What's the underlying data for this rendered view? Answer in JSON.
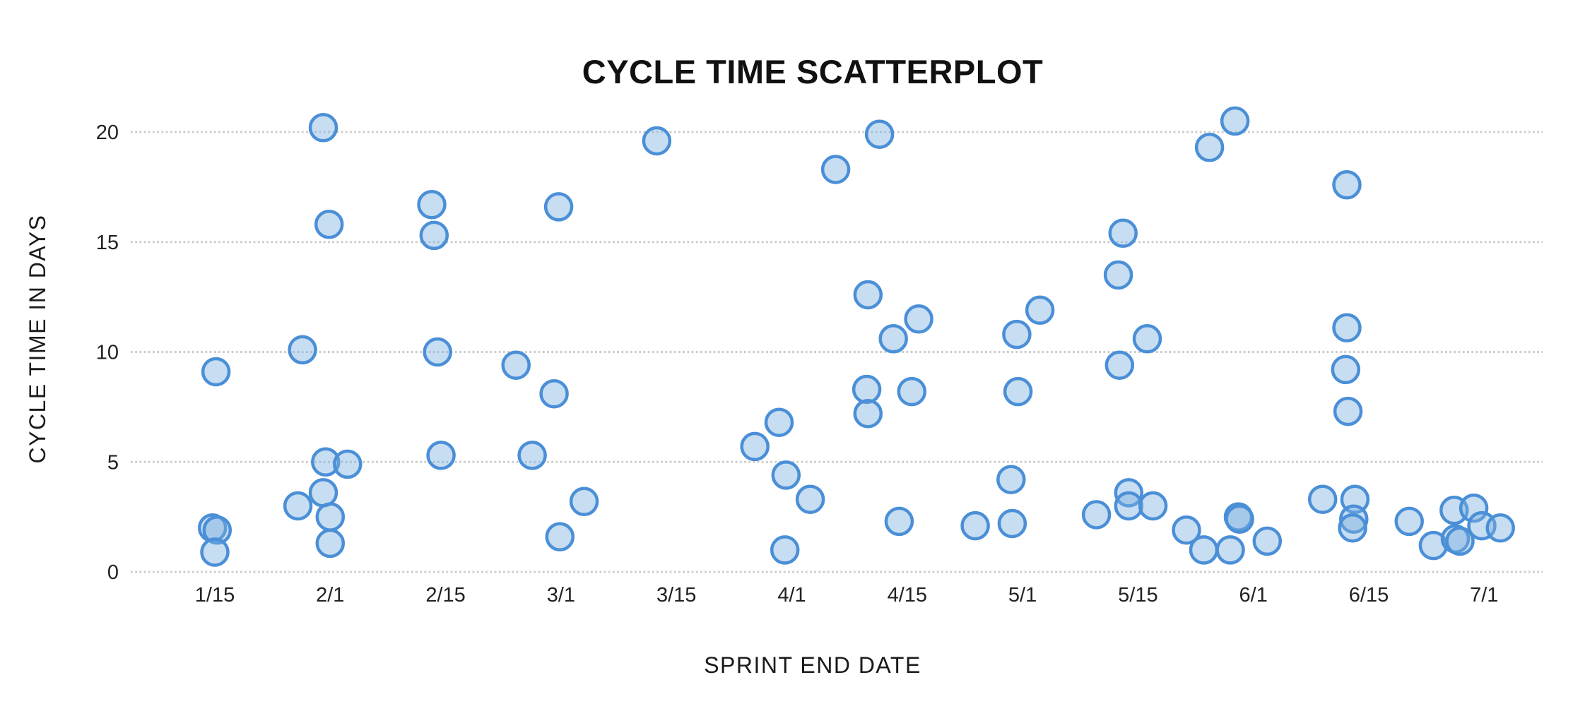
{
  "chart_data": {
    "type": "scatter",
    "title": "CYCLE TIME SCATTERPLOT",
    "xlabel": "SPRINT END DATE",
    "ylabel": "CYCLE TIME IN DAYS",
    "x_categories": [
      "1/15",
      "2/1",
      "2/15",
      "3/1",
      "3/15",
      "4/1",
      "4/15",
      "5/1",
      "5/15",
      "6/1",
      "6/15",
      "7/1"
    ],
    "y_ticks": [
      0,
      5,
      10,
      15,
      20
    ],
    "ylim": [
      0,
      21
    ],
    "grid": "horizontal-dotted",
    "legend": "none",
    "colors": {
      "dot_stroke": "#4a8fd7",
      "dot_fill_base": "#7aadde",
      "dot_fill_rendered_single": "#c8def4",
      "dot_fill_rendered_overlap": "#9cc3ea",
      "gridline": "#cccccc",
      "text": "#111111"
    },
    "series": [
      {
        "name": "cycle-time-items",
        "points": [
          [
            0.01,
            9.1
          ],
          [
            -0.02,
            2.0
          ],
          [
            0.02,
            1.9
          ],
          [
            0.0,
            0.9
          ],
          [
            0.94,
            20.2
          ],
          [
            0.99,
            15.8
          ],
          [
            0.76,
            10.1
          ],
          [
            0.96,
            5.0
          ],
          [
            1.15,
            4.9
          ],
          [
            0.94,
            3.6
          ],
          [
            0.72,
            3.0
          ],
          [
            1.0,
            2.5
          ],
          [
            1.0,
            1.3
          ],
          [
            1.88,
            16.7
          ],
          [
            1.9,
            15.3
          ],
          [
            1.93,
            10.0
          ],
          [
            1.96,
            5.3
          ],
          [
            2.98,
            16.6
          ],
          [
            2.61,
            9.4
          ],
          [
            2.94,
            8.1
          ],
          [
            2.75,
            5.3
          ],
          [
            3.2,
            3.2
          ],
          [
            2.99,
            1.6
          ],
          [
            3.83,
            19.6
          ],
          [
            5.38,
            18.3
          ],
          [
            4.89,
            6.8
          ],
          [
            4.68,
            5.7
          ],
          [
            4.95,
            4.4
          ],
          [
            5.16,
            3.3
          ],
          [
            4.94,
            1.0
          ],
          [
            5.76,
            19.9
          ],
          [
            5.66,
            12.6
          ],
          [
            6.1,
            11.5
          ],
          [
            5.88,
            10.6
          ],
          [
            5.65,
            8.3
          ],
          [
            5.66,
            7.2
          ],
          [
            6.04,
            8.2
          ],
          [
            5.93,
            2.3
          ],
          [
            7.15,
            11.9
          ],
          [
            6.95,
            10.8
          ],
          [
            6.96,
            8.2
          ],
          [
            6.9,
            4.2
          ],
          [
            6.91,
            2.2
          ],
          [
            6.59,
            2.1
          ],
          [
            7.87,
            15.4
          ],
          [
            7.83,
            13.5
          ],
          [
            8.08,
            10.6
          ],
          [
            7.84,
            9.4
          ],
          [
            7.92,
            3.6
          ],
          [
            7.92,
            3.0
          ],
          [
            8.13,
            3.0
          ],
          [
            7.64,
            2.6
          ],
          [
            8.42,
            1.9
          ],
          [
            8.84,
            20.5
          ],
          [
            8.62,
            19.3
          ],
          [
            8.87,
            2.5
          ],
          [
            8.88,
            2.4
          ],
          [
            8.57,
            1.0
          ],
          [
            8.8,
            1.0
          ],
          [
            9.12,
            1.4
          ],
          [
            9.81,
            17.6
          ],
          [
            9.81,
            11.1
          ],
          [
            9.8,
            9.2
          ],
          [
            9.82,
            7.3
          ],
          [
            9.6,
            3.3
          ],
          [
            9.88,
            3.3
          ],
          [
            9.87,
            2.4
          ],
          [
            9.86,
            2.0
          ],
          [
            10.35,
            2.3
          ],
          [
            10.74,
            2.8
          ],
          [
            10.91,
            2.9
          ],
          [
            10.98,
            2.1
          ],
          [
            11.14,
            2.0
          ],
          [
            10.56,
            1.2
          ],
          [
            10.75,
            1.5
          ],
          [
            10.79,
            1.4
          ]
        ]
      }
    ]
  }
}
